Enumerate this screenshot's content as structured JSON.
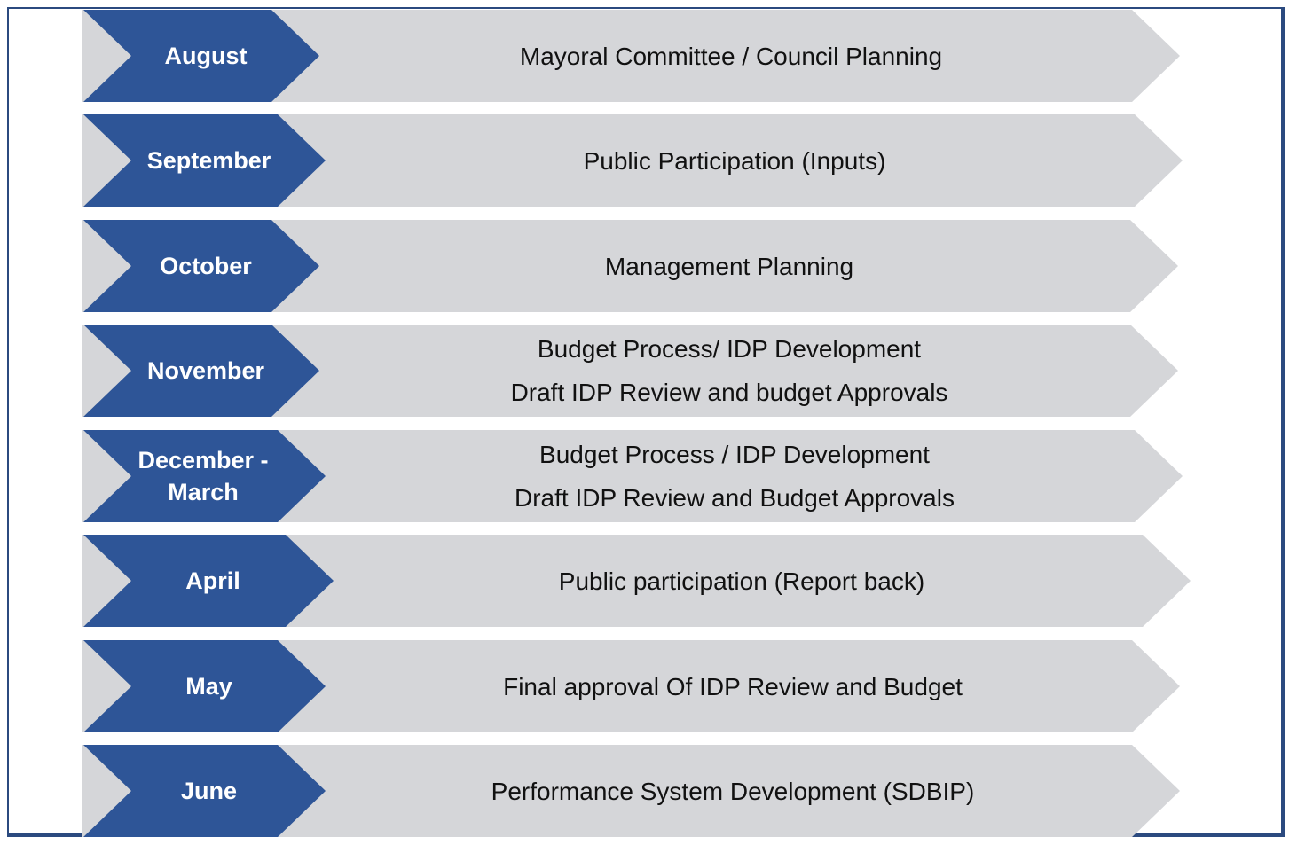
{
  "rows": [
    {
      "month": "August",
      "text": [
        "Mayoral Committee  / Council Planning"
      ]
    },
    {
      "month": "September",
      "text": [
        "Public Participation (Inputs)"
      ]
    },
    {
      "month": "October",
      "text": [
        "Management Planning"
      ]
    },
    {
      "month": "November",
      "text": [
        "Budget Process/ IDP Development",
        "Draft IDP Review and budget Approvals"
      ]
    },
    {
      "month": "December - March",
      "text": [
        "Budget Process / IDP Development",
        "Draft IDP Review and Budget Approvals"
      ]
    },
    {
      "month": "April",
      "text": [
        "Public participation (Report back)"
      ]
    },
    {
      "month": "May",
      "text": [
        "Final approval Of IDP Review and Budget"
      ]
    },
    {
      "month": "June",
      "text": [
        "Performance System Development (SDBIP)"
      ]
    }
  ],
  "colors": {
    "chevron": "#2e5597",
    "band": "#d5d6d9",
    "border": "#2b4a7f"
  }
}
